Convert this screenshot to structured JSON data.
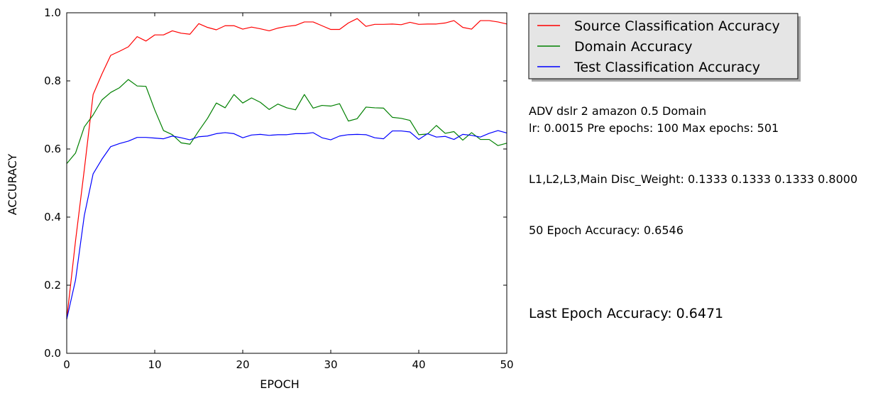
{
  "chart_data": {
    "type": "line",
    "xlabel": "EPOCH",
    "ylabel": "ACCURACY",
    "xlim": [
      0,
      50
    ],
    "ylim": [
      0.0,
      1.0
    ],
    "xticks": [
      0,
      10,
      20,
      30,
      40,
      50
    ],
    "yticks": [
      0.0,
      0.2,
      0.4,
      0.6,
      0.8,
      1.0
    ],
    "xtick_labels": [
      "0",
      "10",
      "20",
      "30",
      "40",
      "50"
    ],
    "ytick_labels": [
      "0.0",
      "0.2",
      "0.4",
      "0.6",
      "0.8",
      "1.0"
    ],
    "grid": false,
    "legend_position": "upper-right-outside",
    "x": [
      0,
      1,
      2,
      3,
      4,
      5,
      6,
      7,
      8,
      9,
      10,
      11,
      12,
      13,
      14,
      15,
      16,
      17,
      18,
      19,
      20,
      21,
      22,
      23,
      24,
      25,
      26,
      27,
      28,
      29,
      30,
      31,
      32,
      33,
      34,
      35,
      36,
      37,
      38,
      39,
      40,
      41,
      42,
      43,
      44,
      45,
      46,
      47,
      48,
      49,
      50
    ],
    "series": [
      {
        "name": "Source Classification Accuracy",
        "color": "#ff0000",
        "values": [
          0.1,
          0.33,
          0.54,
          0.76,
          0.82,
          0.875,
          0.887,
          0.9,
          0.93,
          0.917,
          0.935,
          0.935,
          0.947,
          0.94,
          0.937,
          0.968,
          0.957,
          0.95,
          0.962,
          0.962,
          0.952,
          0.958,
          0.953,
          0.947,
          0.955,
          0.96,
          0.963,
          0.973,
          0.973,
          0.962,
          0.951,
          0.951,
          0.97,
          0.983,
          0.96,
          0.966,
          0.966,
          0.967,
          0.965,
          0.972,
          0.966,
          0.967,
          0.967,
          0.97,
          0.977,
          0.957,
          0.952,
          0.977,
          0.977,
          0.973,
          0.967
        ]
      },
      {
        "name": "Domain Accuracy",
        "color": "#008000",
        "values": [
          0.557,
          0.588,
          0.665,
          0.7,
          0.744,
          0.766,
          0.78,
          0.804,
          0.785,
          0.784,
          0.715,
          0.654,
          0.642,
          0.618,
          0.614,
          0.653,
          0.69,
          0.735,
          0.721,
          0.76,
          0.735,
          0.75,
          0.737,
          0.716,
          0.732,
          0.721,
          0.715,
          0.76,
          0.72,
          0.728,
          0.726,
          0.733,
          0.682,
          0.689,
          0.723,
          0.721,
          0.72,
          0.693,
          0.69,
          0.684,
          0.642,
          0.644,
          0.669,
          0.646,
          0.651,
          0.626,
          0.648,
          0.628,
          0.628,
          0.61,
          0.617
        ]
      },
      {
        "name": "Test Classification Accuracy",
        "color": "#0000ff",
        "values": [
          0.1,
          0.215,
          0.405,
          0.527,
          0.57,
          0.607,
          0.616,
          0.623,
          0.634,
          0.634,
          0.632,
          0.63,
          0.638,
          0.633,
          0.627,
          0.636,
          0.638,
          0.645,
          0.648,
          0.645,
          0.633,
          0.641,
          0.643,
          0.64,
          0.642,
          0.642,
          0.645,
          0.645,
          0.648,
          0.633,
          0.627,
          0.638,
          0.642,
          0.643,
          0.642,
          0.633,
          0.63,
          0.653,
          0.653,
          0.65,
          0.628,
          0.645,
          0.635,
          0.637,
          0.628,
          0.643,
          0.64,
          0.635,
          0.646,
          0.654,
          0.647
        ]
      }
    ]
  },
  "annotations": {
    "line1": "ADV dslr 2 amazon 0.5 Domain",
    "line2": "lr: 0.0015 Pre epochs: 100 Max epochs: 501",
    "line3": "L1,L2,L3,Main Disc_Weight: 0.1333 0.1333 0.1333 0.8000",
    "line4": "50 Epoch Accuracy: 0.6546",
    "line5": "Last Epoch Accuracy: 0.6471"
  }
}
